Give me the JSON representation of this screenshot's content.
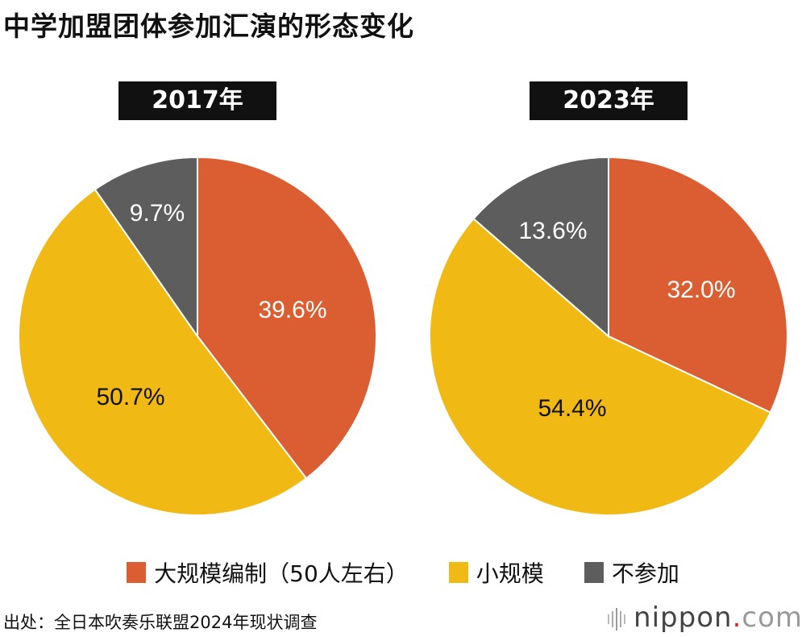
{
  "title": "中学加盟团体参加汇演的形态变化",
  "colors": {
    "large": "#db5e32",
    "small": "#f1b914",
    "none": "#5d5d5d"
  },
  "chart_data": [
    {
      "type": "pie",
      "title": "2017年",
      "categories": [
        "大规模编制（50人左右）",
        "小规模",
        "不参加"
      ],
      "values": [
        39.6,
        50.7,
        9.7
      ],
      "labels": [
        "39.6%",
        "50.7%",
        "9.7%"
      ],
      "start": "top",
      "direction": "clockwise"
    },
    {
      "type": "pie",
      "title": "2023年",
      "categories": [
        "大规模编制（50人左右）",
        "小规模",
        "不参加"
      ],
      "values": [
        32.0,
        54.4,
        13.6
      ],
      "labels": [
        "32.0%",
        "54.4%",
        "13.6%"
      ],
      "start": "top",
      "direction": "clockwise"
    }
  ],
  "legend": [
    {
      "label": "大规模编制（50人左右）",
      "color": "#db5e32"
    },
    {
      "label": "小规模",
      "color": "#f1b914"
    },
    {
      "label": "不参加",
      "color": "#5d5d5d"
    }
  ],
  "source": "出处：全日本吹奏乐联盟2024年现状调查",
  "logo": {
    "name": "nippon",
    "dot": ".",
    "suffix": "com"
  }
}
